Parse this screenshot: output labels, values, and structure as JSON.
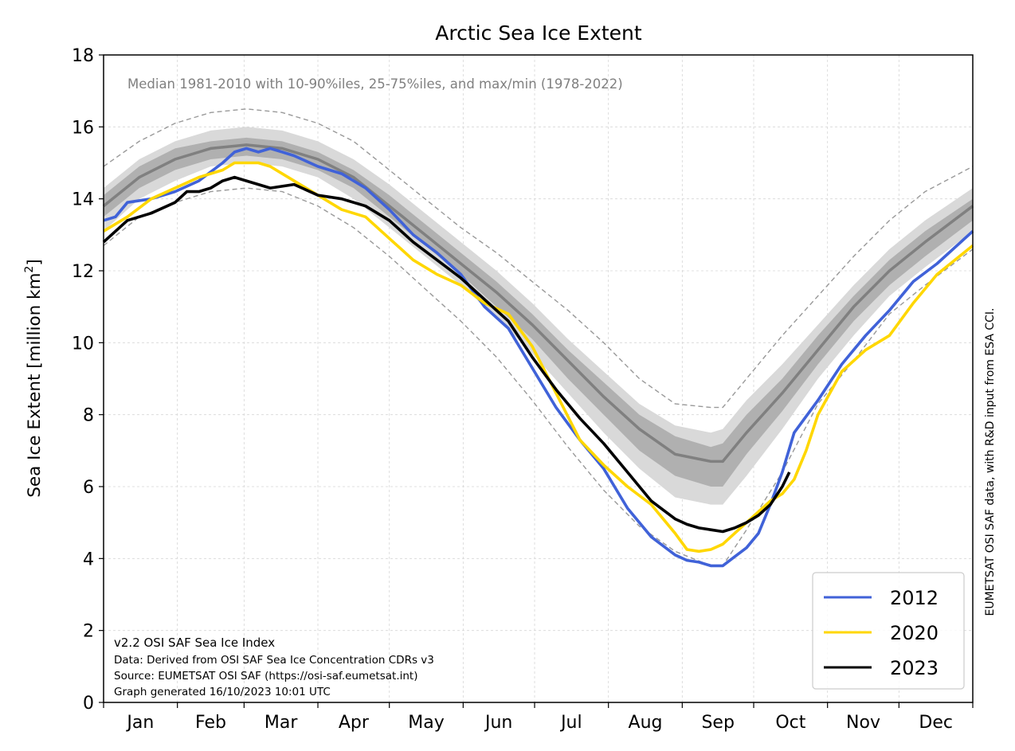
{
  "chart_data": {
    "type": "line",
    "title": "Arctic Sea Ice Extent",
    "subtitle": "Median 1981-2010 with 10-90%iles, 25-75%iles, and max/min (1978-2022)",
    "ylabel_main": "Sea Ice Extent [million km",
    "ylabel_sup": "2",
    "ylabel_end": "]",
    "right_label": "EUMETSAT OSI SAF data, with R&D input from ESA CCI.",
    "footnote": [
      "v2.2 OSI SAF Sea Ice Index",
      "Data: Derived from OSI SAF Sea Ice Concentration CDRs v3",
      "Source: EUMETSAT OSI SAF (https://osi-saf.eumetsat.int)",
      "Graph generated 16/10/2023 10:01 UTC"
    ],
    "xlim": [
      0,
      365
    ],
    "ylim": [
      0,
      18
    ],
    "yticks": [
      "0",
      "2",
      "4",
      "6",
      "8",
      "10",
      "12",
      "14",
      "16",
      "18"
    ],
    "months": [
      "Jan",
      "Feb",
      "Mar",
      "Apr",
      "May",
      "Jun",
      "Jul",
      "Aug",
      "Sep",
      "Oct",
      "Nov",
      "Dec"
    ],
    "grid": true,
    "legend_position": "lower-right",
    "x_days": [
      0,
      15,
      30,
      45,
      60,
      75,
      90,
      105,
      120,
      135,
      150,
      165,
      180,
      195,
      210,
      225,
      240,
      255,
      260,
      270,
      285,
      300,
      315,
      330,
      345,
      365
    ],
    "climatology": {
      "median": [
        13.8,
        14.6,
        15.1,
        15.4,
        15.5,
        15.4,
        15.1,
        14.6,
        13.8,
        13.0,
        12.2,
        11.4,
        10.5,
        9.5,
        8.5,
        7.6,
        6.9,
        6.7,
        6.7,
        7.5,
        8.6,
        9.8,
        11.0,
        12.0,
        12.8,
        13.8
      ],
      "p25": [
        13.5,
        14.3,
        14.8,
        15.1,
        15.2,
        15.1,
        14.8,
        14.3,
        13.5,
        12.7,
        11.9,
        11.0,
        10.1,
        9.0,
        8.0,
        7.0,
        6.3,
        6.0,
        6.0,
        6.9,
        8.1,
        9.4,
        10.6,
        11.6,
        12.4,
        13.4
      ],
      "p75": [
        14.1,
        14.9,
        15.4,
        15.6,
        15.7,
        15.6,
        15.3,
        14.8,
        14.1,
        13.3,
        12.5,
        11.7,
        10.8,
        9.8,
        8.9,
        8.0,
        7.4,
        7.1,
        7.2,
        8.0,
        9.0,
        10.2,
        11.3,
        12.3,
        13.1,
        14.0
      ],
      "p10": [
        13.1,
        14.0,
        14.5,
        14.9,
        15.0,
        14.9,
        14.6,
        14.0,
        13.2,
        12.4,
        11.6,
        10.7,
        9.7,
        8.6,
        7.5,
        6.5,
        5.7,
        5.5,
        5.5,
        6.3,
        7.6,
        9.0,
        10.2,
        11.3,
        12.1,
        13.1
      ],
      "p90": [
        14.3,
        15.1,
        15.6,
        15.9,
        16.0,
        15.9,
        15.6,
        15.1,
        14.4,
        13.6,
        12.8,
        12.0,
        11.1,
        10.1,
        9.2,
        8.3,
        7.7,
        7.5,
        7.6,
        8.4,
        9.4,
        10.5,
        11.6,
        12.6,
        13.4,
        14.3
      ],
      "min": [
        12.7,
        13.5,
        13.9,
        14.2,
        14.3,
        14.2,
        13.8,
        13.2,
        12.4,
        11.5,
        10.6,
        9.6,
        8.4,
        7.1,
        5.9,
        4.9,
        4.2,
        3.8,
        3.8,
        4.8,
        6.4,
        8.3,
        9.5,
        10.8,
        11.6,
        12.6
      ],
      "max": [
        14.9,
        15.6,
        16.1,
        16.4,
        16.5,
        16.4,
        16.1,
        15.6,
        14.8,
        14.0,
        13.2,
        12.5,
        11.7,
        10.9,
        10.0,
        9.0,
        8.3,
        8.2,
        8.2,
        9.0,
        10.2,
        11.3,
        12.4,
        13.4,
        14.2,
        14.9
      ]
    },
    "series": [
      {
        "name": "2012",
        "color": "#4062d8",
        "x": [
          0,
          5,
          10,
          20,
          30,
          40,
          50,
          55,
          60,
          65,
          70,
          75,
          80,
          90,
          100,
          110,
          120,
          130,
          140,
          150,
          160,
          170,
          180,
          190,
          200,
          210,
          220,
          230,
          240,
          245,
          250,
          255,
          260,
          265,
          270,
          275,
          280,
          285,
          290,
          300,
          310,
          320,
          330,
          340,
          350,
          365
        ],
        "y": [
          13.4,
          13.5,
          13.9,
          14.0,
          14.2,
          14.5,
          15.0,
          15.3,
          15.4,
          15.3,
          15.4,
          15.3,
          15.2,
          14.9,
          14.7,
          14.3,
          13.7,
          13.0,
          12.5,
          11.9,
          11.0,
          10.4,
          9.3,
          8.2,
          7.3,
          6.5,
          5.4,
          4.6,
          4.1,
          3.95,
          3.9,
          3.8,
          3.8,
          4.05,
          4.3,
          4.7,
          5.5,
          6.4,
          7.5,
          8.4,
          9.4,
          10.2,
          10.9,
          11.7,
          12.2,
          13.1
        ]
      },
      {
        "name": "2020",
        "color": "#ffd700",
        "x": [
          0,
          10,
          20,
          30,
          40,
          50,
          55,
          60,
          65,
          70,
          75,
          80,
          90,
          100,
          110,
          120,
          130,
          140,
          150,
          160,
          170,
          180,
          190,
          200,
          210,
          220,
          230,
          240,
          245,
          250,
          255,
          260,
          265,
          270,
          275,
          280,
          285,
          290,
          295,
          300,
          310,
          320,
          330,
          340,
          350,
          365
        ],
        "y": [
          13.1,
          13.5,
          14.0,
          14.3,
          14.6,
          14.8,
          15.0,
          15.0,
          15.0,
          14.9,
          14.7,
          14.5,
          14.1,
          13.7,
          13.5,
          12.9,
          12.3,
          11.9,
          11.6,
          11.1,
          10.8,
          9.9,
          8.6,
          7.3,
          6.6,
          6.0,
          5.5,
          4.7,
          4.25,
          4.2,
          4.25,
          4.4,
          4.7,
          5.0,
          5.3,
          5.6,
          5.8,
          6.2,
          7.0,
          8.0,
          9.2,
          9.8,
          10.2,
          11.1,
          11.9,
          12.7
        ]
      },
      {
        "name": "2023",
        "color": "#000000",
        "x": [
          0,
          10,
          20,
          30,
          35,
          40,
          45,
          50,
          55,
          60,
          65,
          70,
          80,
          90,
          100,
          110,
          120,
          130,
          140,
          150,
          160,
          170,
          180,
          190,
          200,
          210,
          220,
          230,
          240,
          245,
          250,
          255,
          260,
          265,
          270,
          275,
          280,
          285,
          288
        ],
        "y": [
          12.8,
          13.4,
          13.6,
          13.9,
          14.2,
          14.2,
          14.3,
          14.5,
          14.6,
          14.5,
          14.4,
          14.3,
          14.4,
          14.1,
          14.0,
          13.8,
          13.4,
          12.8,
          12.3,
          11.8,
          11.2,
          10.6,
          9.6,
          8.7,
          7.9,
          7.2,
          6.4,
          5.6,
          5.1,
          4.95,
          4.85,
          4.8,
          4.75,
          4.85,
          5.0,
          5.2,
          5.5,
          6.0,
          6.4
        ]
      }
    ]
  }
}
